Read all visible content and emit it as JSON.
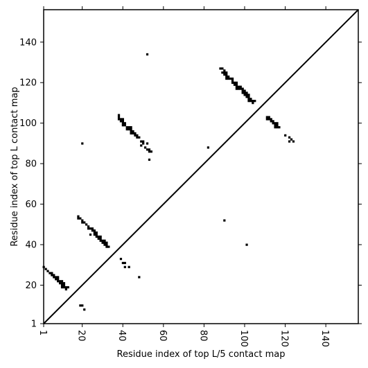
{
  "chart_data": {
    "type": "scatter",
    "xlabel": "Residue index of top L/5 contact map",
    "ylabel": "Residue index of top L contact map",
    "xlim": [
      1,
      156
    ],
    "ylim": [
      1,
      156
    ],
    "xticks": [
      1,
      20,
      40,
      60,
      80,
      100,
      120,
      140
    ],
    "yticks": [
      1,
      20,
      40,
      60,
      80,
      100,
      120,
      140
    ],
    "diagonal": true,
    "marker": "square",
    "color": "#000000",
    "series": [
      {
        "values": [
          [
            1,
            29
          ],
          [
            2,
            28
          ],
          [
            3,
            27
          ],
          [
            4,
            26
          ],
          [
            5,
            26
          ],
          [
            5,
            25
          ],
          [
            6,
            25
          ],
          [
            6,
            24
          ],
          [
            7,
            24
          ],
          [
            7,
            23
          ],
          [
            8,
            24
          ],
          [
            8,
            23
          ],
          [
            8,
            22
          ],
          [
            9,
            22
          ],
          [
            9,
            21
          ],
          [
            10,
            22
          ],
          [
            10,
            21
          ],
          [
            10,
            20
          ],
          [
            10,
            19
          ],
          [
            11,
            21
          ],
          [
            11,
            20
          ],
          [
            11,
            19
          ],
          [
            12,
            19
          ],
          [
            12,
            18
          ],
          [
            13,
            19
          ],
          [
            19,
            10
          ],
          [
            20,
            10
          ],
          [
            21,
            8
          ],
          [
            18,
            54
          ],
          [
            18,
            53
          ],
          [
            19,
            53
          ],
          [
            20,
            52
          ],
          [
            20,
            51
          ],
          [
            21,
            51
          ],
          [
            22,
            50
          ],
          [
            23,
            49
          ],
          [
            23,
            48
          ],
          [
            24,
            48
          ],
          [
            25,
            48
          ],
          [
            25,
            47
          ],
          [
            26,
            47
          ],
          [
            26,
            46
          ],
          [
            26,
            45
          ],
          [
            27,
            46
          ],
          [
            27,
            45
          ],
          [
            27,
            44
          ],
          [
            28,
            44
          ],
          [
            28,
            43
          ],
          [
            29,
            44
          ],
          [
            29,
            43
          ],
          [
            29,
            42
          ],
          [
            30,
            42
          ],
          [
            30,
            41
          ],
          [
            31,
            42
          ],
          [
            31,
            41
          ],
          [
            31,
            40
          ],
          [
            32,
            41
          ],
          [
            32,
            40
          ],
          [
            32,
            39
          ],
          [
            33,
            39
          ],
          [
            24,
            45
          ],
          [
            20,
            90
          ],
          [
            39,
            33
          ],
          [
            40,
            31
          ],
          [
            41,
            31
          ],
          [
            41,
            29
          ],
          [
            43,
            29
          ],
          [
            48,
            24
          ],
          [
            38,
            104
          ],
          [
            38,
            103
          ],
          [
            38,
            102
          ],
          [
            39,
            102
          ],
          [
            39,
            101
          ],
          [
            40,
            102
          ],
          [
            40,
            101
          ],
          [
            40,
            100
          ],
          [
            40,
            99
          ],
          [
            41,
            100
          ],
          [
            41,
            99
          ],
          [
            42,
            98
          ],
          [
            42,
            97
          ],
          [
            43,
            98
          ],
          [
            43,
            97
          ],
          [
            44,
            98
          ],
          [
            44,
            97
          ],
          [
            44,
            96
          ],
          [
            44,
            95
          ],
          [
            45,
            96
          ],
          [
            45,
            95
          ],
          [
            46,
            95
          ],
          [
            46,
            94
          ],
          [
            47,
            94
          ],
          [
            47,
            93
          ],
          [
            48,
            93
          ],
          [
            49,
            91
          ],
          [
            49,
            89
          ],
          [
            50,
            91
          ],
          [
            50,
            90
          ],
          [
            51,
            88
          ],
          [
            52,
            90
          ],
          [
            52,
            87
          ],
          [
            53,
            87
          ],
          [
            53,
            86
          ],
          [
            54,
            86
          ],
          [
            53,
            82
          ],
          [
            52,
            134
          ],
          [
            82,
            88
          ],
          [
            90,
            52
          ],
          [
            88,
            127
          ],
          [
            89,
            127
          ],
          [
            89,
            125
          ],
          [
            90,
            126
          ],
          [
            90,
            125
          ],
          [
            90,
            124
          ],
          [
            91,
            125
          ],
          [
            91,
            124
          ],
          [
            91,
            123
          ],
          [
            91,
            122
          ],
          [
            92,
            123
          ],
          [
            92,
            122
          ],
          [
            93,
            122
          ],
          [
            94,
            122
          ],
          [
            94,
            121
          ],
          [
            94,
            120
          ],
          [
            95,
            120
          ],
          [
            95,
            119
          ],
          [
            96,
            120
          ],
          [
            96,
            119
          ],
          [
            96,
            118
          ],
          [
            96,
            117
          ],
          [
            97,
            118
          ],
          [
            97,
            117
          ],
          [
            98,
            118
          ],
          [
            98,
            117
          ],
          [
            99,
            117
          ],
          [
            99,
            116
          ],
          [
            99,
            115
          ],
          [
            100,
            116
          ],
          [
            100,
            115
          ],
          [
            100,
            114
          ],
          [
            101,
            115
          ],
          [
            101,
            114
          ],
          [
            101,
            113
          ],
          [
            102,
            114
          ],
          [
            102,
            113
          ],
          [
            102,
            112
          ],
          [
            102,
            111
          ],
          [
            103,
            112
          ],
          [
            103,
            111
          ],
          [
            104,
            111
          ],
          [
            104,
            110
          ],
          [
            105,
            111
          ],
          [
            101,
            40
          ],
          [
            111,
            103
          ],
          [
            111,
            102
          ],
          [
            112,
            103
          ],
          [
            112,
            102
          ],
          [
            113,
            102
          ],
          [
            113,
            101
          ],
          [
            114,
            101
          ],
          [
            114,
            100
          ],
          [
            115,
            100
          ],
          [
            115,
            99
          ],
          [
            115,
            98
          ],
          [
            116,
            100
          ],
          [
            116,
            99
          ],
          [
            116,
            98
          ],
          [
            117,
            98
          ],
          [
            120,
            94
          ],
          [
            122,
            93
          ],
          [
            122,
            91
          ],
          [
            123,
            92
          ],
          [
            124,
            91
          ]
        ]
      }
    ]
  }
}
